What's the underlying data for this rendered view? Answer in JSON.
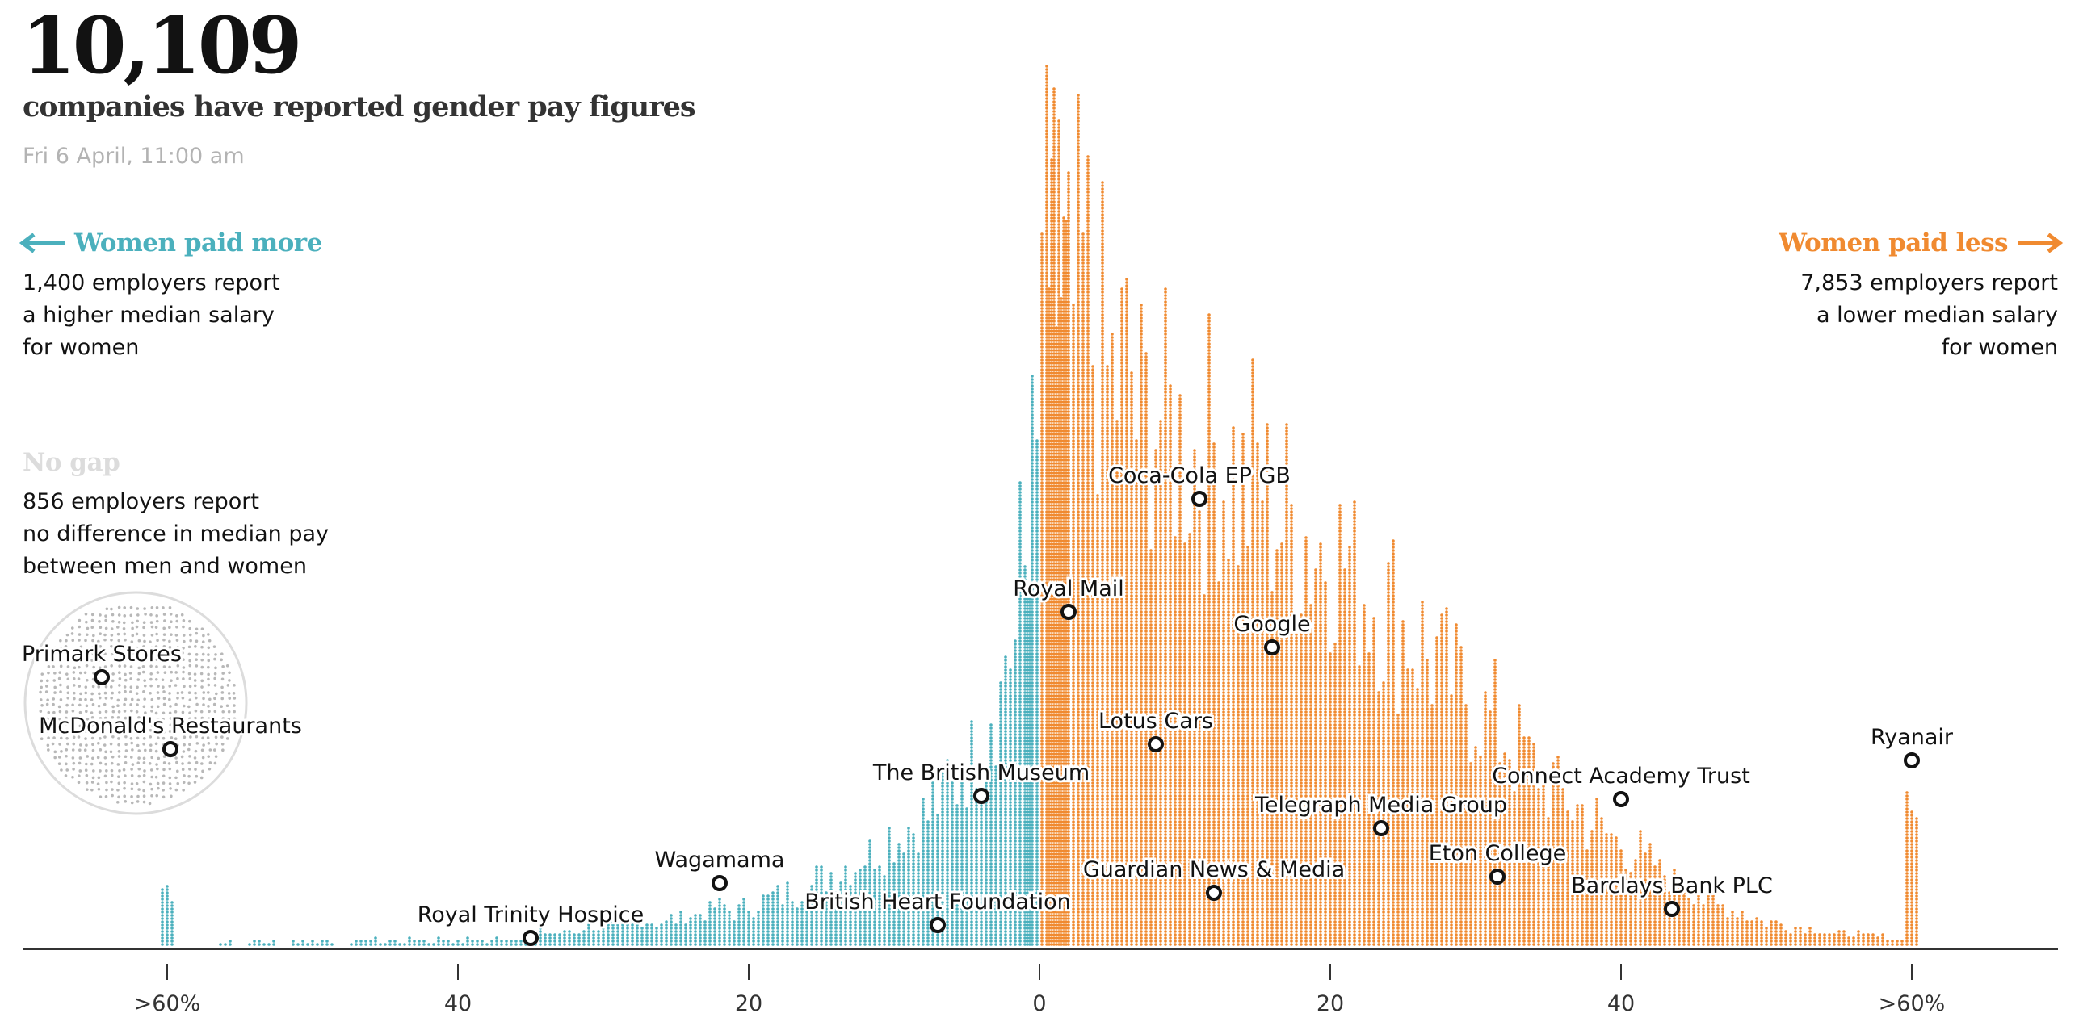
{
  "header": {
    "count": "10,109",
    "subtitle": "companies have reported gender pay figures",
    "timestamp": "Fri 6 April, 11:00 am"
  },
  "women_paid_more": {
    "title": "Women paid more",
    "lines": [
      "1,400 employers report",
      "a higher median salary",
      "for women"
    ]
  },
  "women_paid_less": {
    "title": "Women paid less",
    "lines": [
      "7,853 employers report",
      "a lower median salary",
      "for women"
    ]
  },
  "no_gap": {
    "title": "No gap",
    "lines": [
      "856 employers report",
      "no difference in median pay",
      "between men and women"
    ]
  },
  "colors": {
    "more": "#4bb0bd",
    "less": "#f08a30",
    "nogap": "#b8b8b8",
    "axis": "#333333",
    "text": "#121212"
  },
  "chart_data": {
    "type": "scatter",
    "xlabel": "",
    "ylabel": "",
    "x_ticks": [
      {
        "value": -60,
        "label": ">60%"
      },
      {
        "value": -40,
        "label": "40"
      },
      {
        "value": -20,
        "label": "20"
      },
      {
        "value": 0,
        "label": "0"
      },
      {
        "value": 20,
        "label": "20"
      },
      {
        "value": 40,
        "label": "40"
      },
      {
        "value": 60,
        "label": ">60%"
      }
    ],
    "xlim": [
      -70,
      70
    ],
    "ylim": [
      0,
      285
    ],
    "columns_more": [
      [
        -60,
        24
      ],
      [
        -56,
        2
      ],
      [
        -54,
        2
      ],
      [
        -53,
        2
      ],
      [
        -51,
        2
      ],
      [
        -50,
        2
      ],
      [
        -49,
        2
      ],
      [
        -47,
        2
      ],
      [
        -46,
        3
      ],
      [
        -45,
        2
      ],
      [
        -44,
        2
      ],
      [
        -43,
        3
      ],
      [
        -42,
        2
      ],
      [
        -41,
        3
      ],
      [
        -40,
        2
      ],
      [
        -39,
        3
      ],
      [
        -38,
        2
      ],
      [
        -37,
        3
      ],
      [
        -36,
        3
      ],
      [
        -35,
        4
      ],
      [
        -34,
        6
      ],
      [
        -33,
        5
      ],
      [
        -32,
        6
      ],
      [
        -31,
        8
      ],
      [
        -30,
        7
      ],
      [
        -29,
        8
      ],
      [
        -28,
        9
      ],
      [
        -27,
        10
      ],
      [
        -26,
        9
      ],
      [
        -25,
        11
      ],
      [
        -24,
        12
      ],
      [
        -23,
        14
      ],
      [
        -22,
        16
      ],
      [
        -21,
        14
      ],
      [
        -20,
        16
      ],
      [
        -19,
        18
      ],
      [
        -18,
        20
      ],
      [
        -17,
        22
      ],
      [
        -16,
        24
      ],
      [
        -15,
        27
      ],
      [
        -14,
        30
      ],
      [
        -13,
        32
      ],
      [
        -12,
        36
      ],
      [
        -11,
        40
      ],
      [
        -10,
        44
      ],
      [
        -9,
        48
      ],
      [
        -8,
        52
      ],
      [
        -7,
        58
      ],
      [
        -6,
        66
      ],
      [
        -5,
        74
      ],
      [
        -4,
        84
      ],
      [
        -3,
        100
      ],
      [
        -2,
        120
      ],
      [
        -1,
        150
      ],
      [
        -0.5,
        185
      ]
    ],
    "columns_less": [
      [
        0.5,
        285
      ],
      [
        1,
        270
      ],
      [
        1.5,
        260
      ],
      [
        2,
        250
      ],
      [
        3,
        265
      ],
      [
        4,
        240
      ],
      [
        5,
        225
      ],
      [
        6,
        230
      ],
      [
        7,
        210
      ],
      [
        8,
        215
      ],
      [
        9,
        205
      ],
      [
        10,
        200
      ],
      [
        11,
        195
      ],
      [
        12,
        200
      ],
      [
        13,
        190
      ],
      [
        14,
        180
      ],
      [
        15,
        190
      ],
      [
        16,
        175
      ],
      [
        17,
        170
      ],
      [
        18,
        165
      ],
      [
        19,
        160
      ],
      [
        20,
        162
      ],
      [
        21,
        155
      ],
      [
        22,
        145
      ],
      [
        23,
        140
      ],
      [
        24,
        135
      ],
      [
        25,
        128
      ],
      [
        26,
        122
      ],
      [
        27,
        115
      ],
      [
        28,
        108
      ],
      [
        29,
        102
      ],
      [
        30,
        96
      ],
      [
        31,
        90
      ],
      [
        32,
        84
      ],
      [
        33,
        78
      ],
      [
        34,
        72
      ],
      [
        35,
        66
      ],
      [
        36,
        60
      ],
      [
        37,
        55
      ],
      [
        38,
        50
      ],
      [
        39,
        45
      ],
      [
        40,
        41
      ],
      [
        41,
        37
      ],
      [
        42,
        33
      ],
      [
        43,
        29
      ],
      [
        44,
        25
      ],
      [
        45,
        22
      ],
      [
        46,
        19
      ],
      [
        47,
        16
      ],
      [
        48,
        14
      ],
      [
        49,
        12
      ],
      [
        50,
        10
      ],
      [
        51,
        9
      ],
      [
        52,
        8
      ],
      [
        53,
        7
      ],
      [
        54,
        6
      ],
      [
        55,
        5
      ],
      [
        56,
        5
      ],
      [
        57,
        4
      ],
      [
        58,
        4
      ],
      [
        59,
        3
      ],
      [
        60,
        58
      ]
    ],
    "companies": [
      {
        "name": "Royal Trinity Hospice",
        "x": -35,
        "y": 2
      },
      {
        "name": "Wagamama",
        "x": -22,
        "y": 19
      },
      {
        "name": "British Heart Foundation",
        "x": -7,
        "y": 6
      },
      {
        "name": "The British Museum",
        "x": -4,
        "y": 46
      },
      {
        "name": "Royal Mail",
        "x": 2,
        "y": 103
      },
      {
        "name": "Coca-Cola EP GB",
        "x": 11,
        "y": 138
      },
      {
        "name": "Google",
        "x": 16,
        "y": 92
      },
      {
        "name": "Lotus Cars",
        "x": 8,
        "y": 62
      },
      {
        "name": "Guardian News & Media",
        "x": 12,
        "y": 16
      },
      {
        "name": "Telegraph Media Group",
        "x": 23.5,
        "y": 36
      },
      {
        "name": "Eton College",
        "x": 31.5,
        "y": 21
      },
      {
        "name": "Connect Academy Trust",
        "x": 40,
        "y": 45
      },
      {
        "name": "Barclays Bank PLC",
        "x": 43.5,
        "y": 11
      },
      {
        "name": "Ryanair",
        "x": 60,
        "y": 57
      }
    ],
    "no_gap_companies": [
      "Primark Stores",
      "McDonald's Restaurants"
    ]
  }
}
